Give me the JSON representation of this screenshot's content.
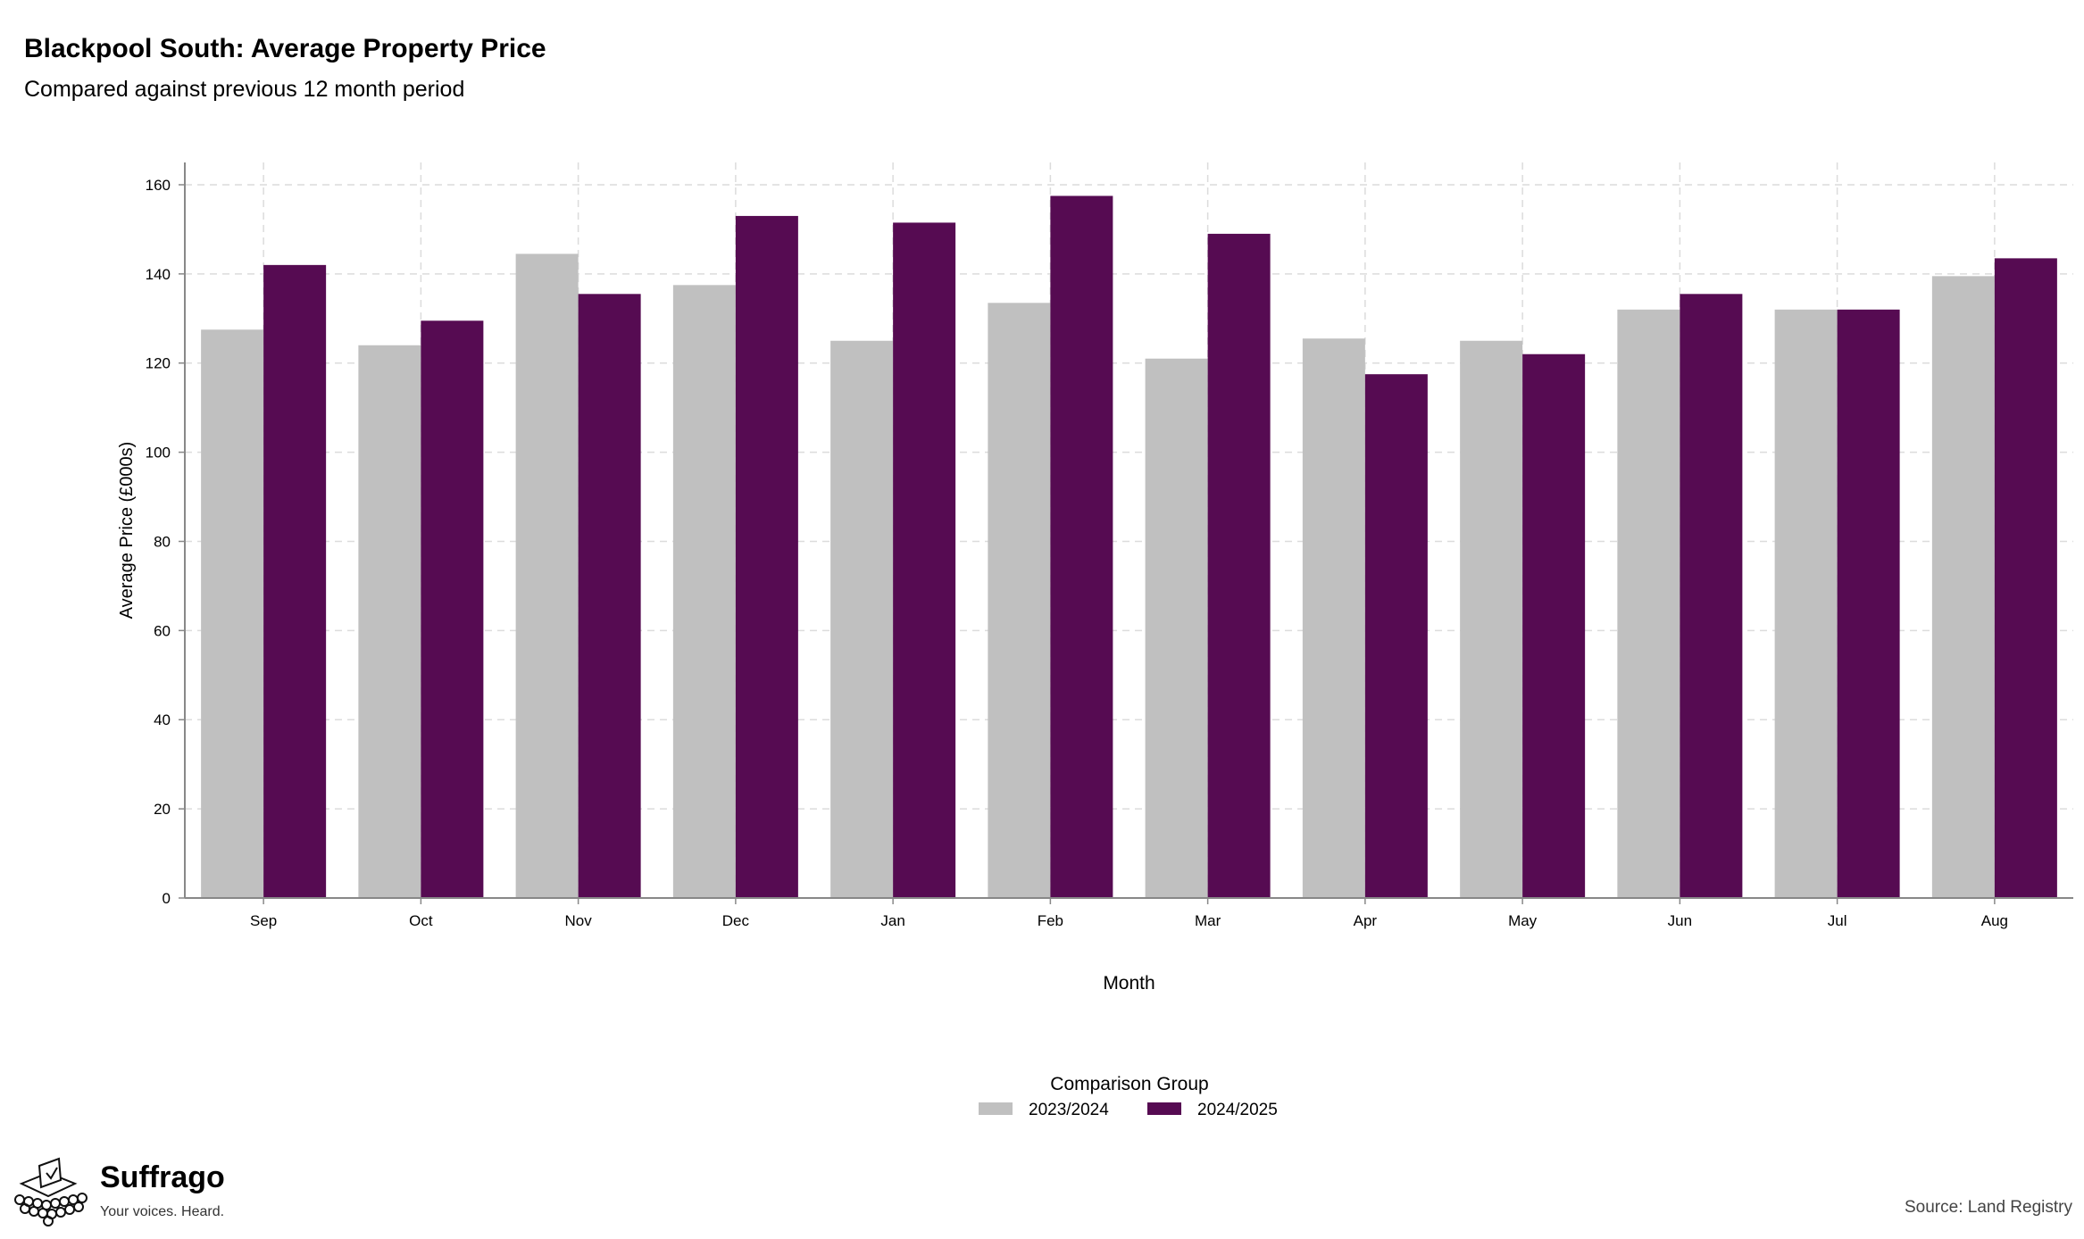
{
  "title": "Blackpool South: Average Property Price",
  "subtitle": "Compared against previous 12 month period",
  "source": "Source: Land Registry",
  "brand": {
    "name": "Suffrago",
    "tagline": "Your voices. Heard."
  },
  "colors": {
    "series_2023": "#c0c0c0",
    "series_2024": "#560b52",
    "grid": "#dcdcdc",
    "axis": "#888888"
  },
  "chart_data": {
    "type": "bar",
    "categories": [
      "Sep",
      "Oct",
      "Nov",
      "Dec",
      "Jan",
      "Feb",
      "Mar",
      "Apr",
      "May",
      "Jun",
      "Jul",
      "Aug"
    ],
    "series": [
      {
        "name": "2023/2024",
        "values": [
          127.5,
          124,
          144.5,
          137.5,
          125,
          133.5,
          121,
          125.5,
          125,
          132,
          132,
          139.5
        ]
      },
      {
        "name": "2024/2025",
        "values": [
          142,
          129.5,
          135.5,
          153,
          151.5,
          157.5,
          149,
          117.5,
          122,
          135.5,
          132,
          143.5
        ]
      }
    ],
    "xlabel": "Month",
    "ylabel": "Average Price (£000s)",
    "ylim": [
      0,
      165
    ],
    "yticks": [
      0,
      20,
      40,
      60,
      80,
      100,
      120,
      140,
      160
    ],
    "grid": true,
    "legend": {
      "title": "Comparison Group",
      "position": "bottom"
    }
  }
}
